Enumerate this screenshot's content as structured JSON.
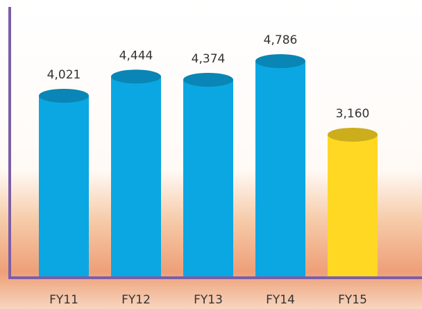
{
  "chart_data": {
    "type": "bar",
    "categories": [
      "FY11",
      "FY12",
      "FY13",
      "FY14",
      "FY15"
    ],
    "values": [
      4021,
      4444,
      4374,
      4786,
      3160
    ],
    "value_labels": [
      "4,021",
      "4,444",
      "4,374",
      "4,786",
      "3,160"
    ],
    "colors": [
      "#0ba7e2",
      "#0ba7e2",
      "#0ba7e2",
      "#0ba7e2",
      "#ffd823"
    ],
    "axis_color": "#7b5ea7"
  }
}
